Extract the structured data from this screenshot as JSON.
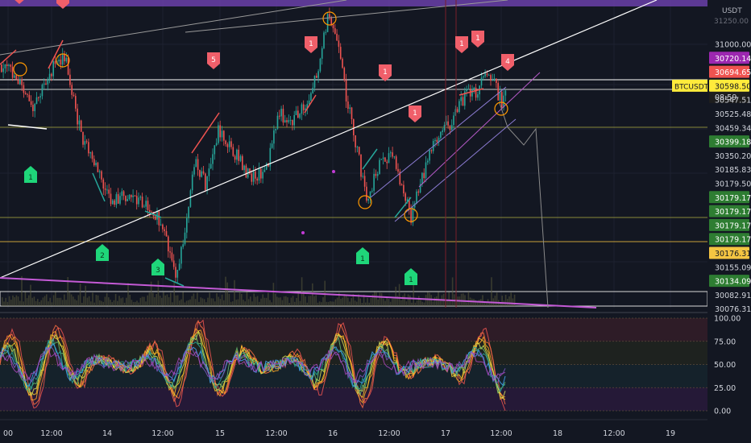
{
  "chart_data": {
    "type": "line",
    "symbol": "BTCUSDT",
    "currency": "USDT",
    "price_label": "31250.00",
    "price_axis_ticks": [
      {
        "value": 31000.0,
        "label": "31000.00"
      },
      {
        "value": 30720.14,
        "label": "30720.14",
        "style": "magenta-tag"
      },
      {
        "value": 30694.65,
        "label": "30694.65",
        "style": "red-tag"
      },
      {
        "value": 30598.5,
        "label": "30598.50",
        "style": "current"
      },
      {
        "value": 30547.51,
        "label": "30547.51"
      },
      {
        "value": 30525.48,
        "label": "30525.48"
      },
      {
        "value": 30459.34,
        "label": "30459.34"
      },
      {
        "value": 30399.18,
        "label": "30399.18",
        "style": "green-tag"
      },
      {
        "value": 30350.2,
        "label": "30350.20"
      },
      {
        "value": 30185.83,
        "label": "30185.83"
      },
      {
        "value": 30179.5,
        "label": "30179.50"
      },
      {
        "value": 30179.17,
        "label": "30179.17",
        "style": "green-tag"
      },
      {
        "value": 30179.17,
        "label": "30179.17",
        "style": "green-tag"
      },
      {
        "value": 30179.17,
        "label": "30179.17",
        "style": "green-tag"
      },
      {
        "value": 30179.17,
        "label": "30179.17",
        "style": "green-tag"
      },
      {
        "value": 30176.31,
        "label": "30176.31",
        "style": "orange-tag"
      },
      {
        "value": 30155.09,
        "label": "30155.09"
      },
      {
        "value": 30134.09,
        "label": "30134.09",
        "style": "green-tag"
      },
      {
        "value": 30082.91,
        "label": "30082.91"
      },
      {
        "value": 30076.31,
        "label": "30076.31"
      }
    ],
    "current_price": 30598.5,
    "countdown": "08:59",
    "time_axis": [
      "00",
      "12:00",
      "14",
      "12:00",
      "15",
      "12:00",
      "16",
      "12:00",
      "17",
      "12:00",
      "18",
      "12:00",
      "19"
    ],
    "oscillator_axis": [
      "100.00",
      "75.00",
      "50.00",
      "25.00",
      "0.00"
    ],
    "oscillator_range": [
      0,
      100
    ],
    "colors": {
      "background": "#131722",
      "up": "#26a69a",
      "down": "#ef5350",
      "accent_magenta": "#9c27b0",
      "accent_orange": "#ff9800",
      "tag_green": "#2e7d32",
      "tag_red": "#ef5350",
      "tag_yellow": "#ffeb3b"
    },
    "markers": {
      "sell": [
        "1",
        "5",
        "1",
        "1",
        "1",
        "1",
        "4"
      ],
      "buy": [
        "1",
        "2",
        "3",
        "1",
        "1"
      ]
    },
    "grid": true
  }
}
